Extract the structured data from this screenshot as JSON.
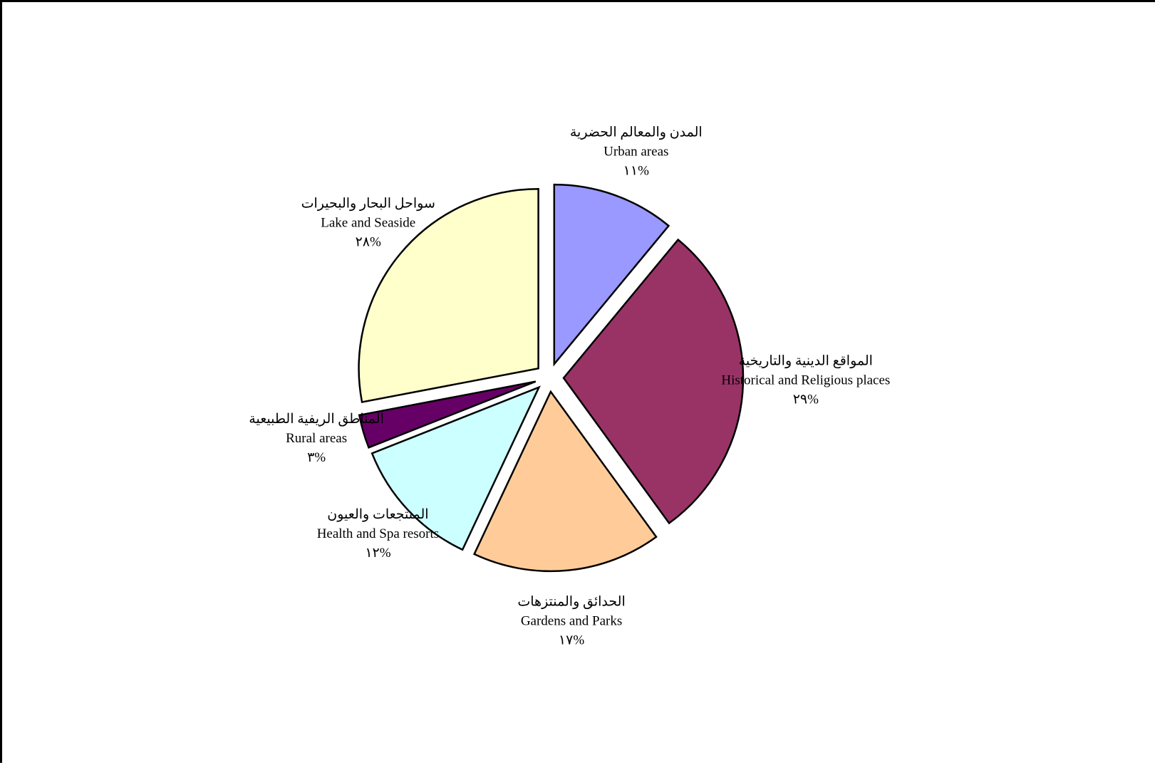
{
  "chart_data": {
    "type": "pie",
    "title": "",
    "exploded": true,
    "slices": [
      {
        "label_ar": "المدن والمعالم الحضرية",
        "label_en": "Urban areas",
        "value": 11,
        "value_label": "%١١",
        "color": "#9999ff"
      },
      {
        "label_ar": "المواقع الدينية والتاريخية",
        "label_en": "Historical and Religious places",
        "value": 29,
        "value_label": "%٢٩",
        "color": "#993366"
      },
      {
        "label_ar": "الحدائق والمنتزهات",
        "label_en": "Gardens and Parks",
        "value": 17,
        "value_label": "%١٧",
        "color": "#ffcc99"
      },
      {
        "label_ar": "المنتجعات والعيون",
        "label_en": "Health and Spa resorts",
        "value": 12,
        "value_label": "%١٢",
        "color": "#ccffff"
      },
      {
        "label_ar": "المناطق الريفية الطبيعية",
        "label_en": "Rural areas",
        "value": 3,
        "value_label": "%٣",
        "color": "#660066"
      },
      {
        "label_ar": "سواحل البحار والبحيرات",
        "label_en": "Lake and Seaside",
        "value": 28,
        "value_label": "%٢٨",
        "color": "#ffffcc"
      }
    ]
  }
}
